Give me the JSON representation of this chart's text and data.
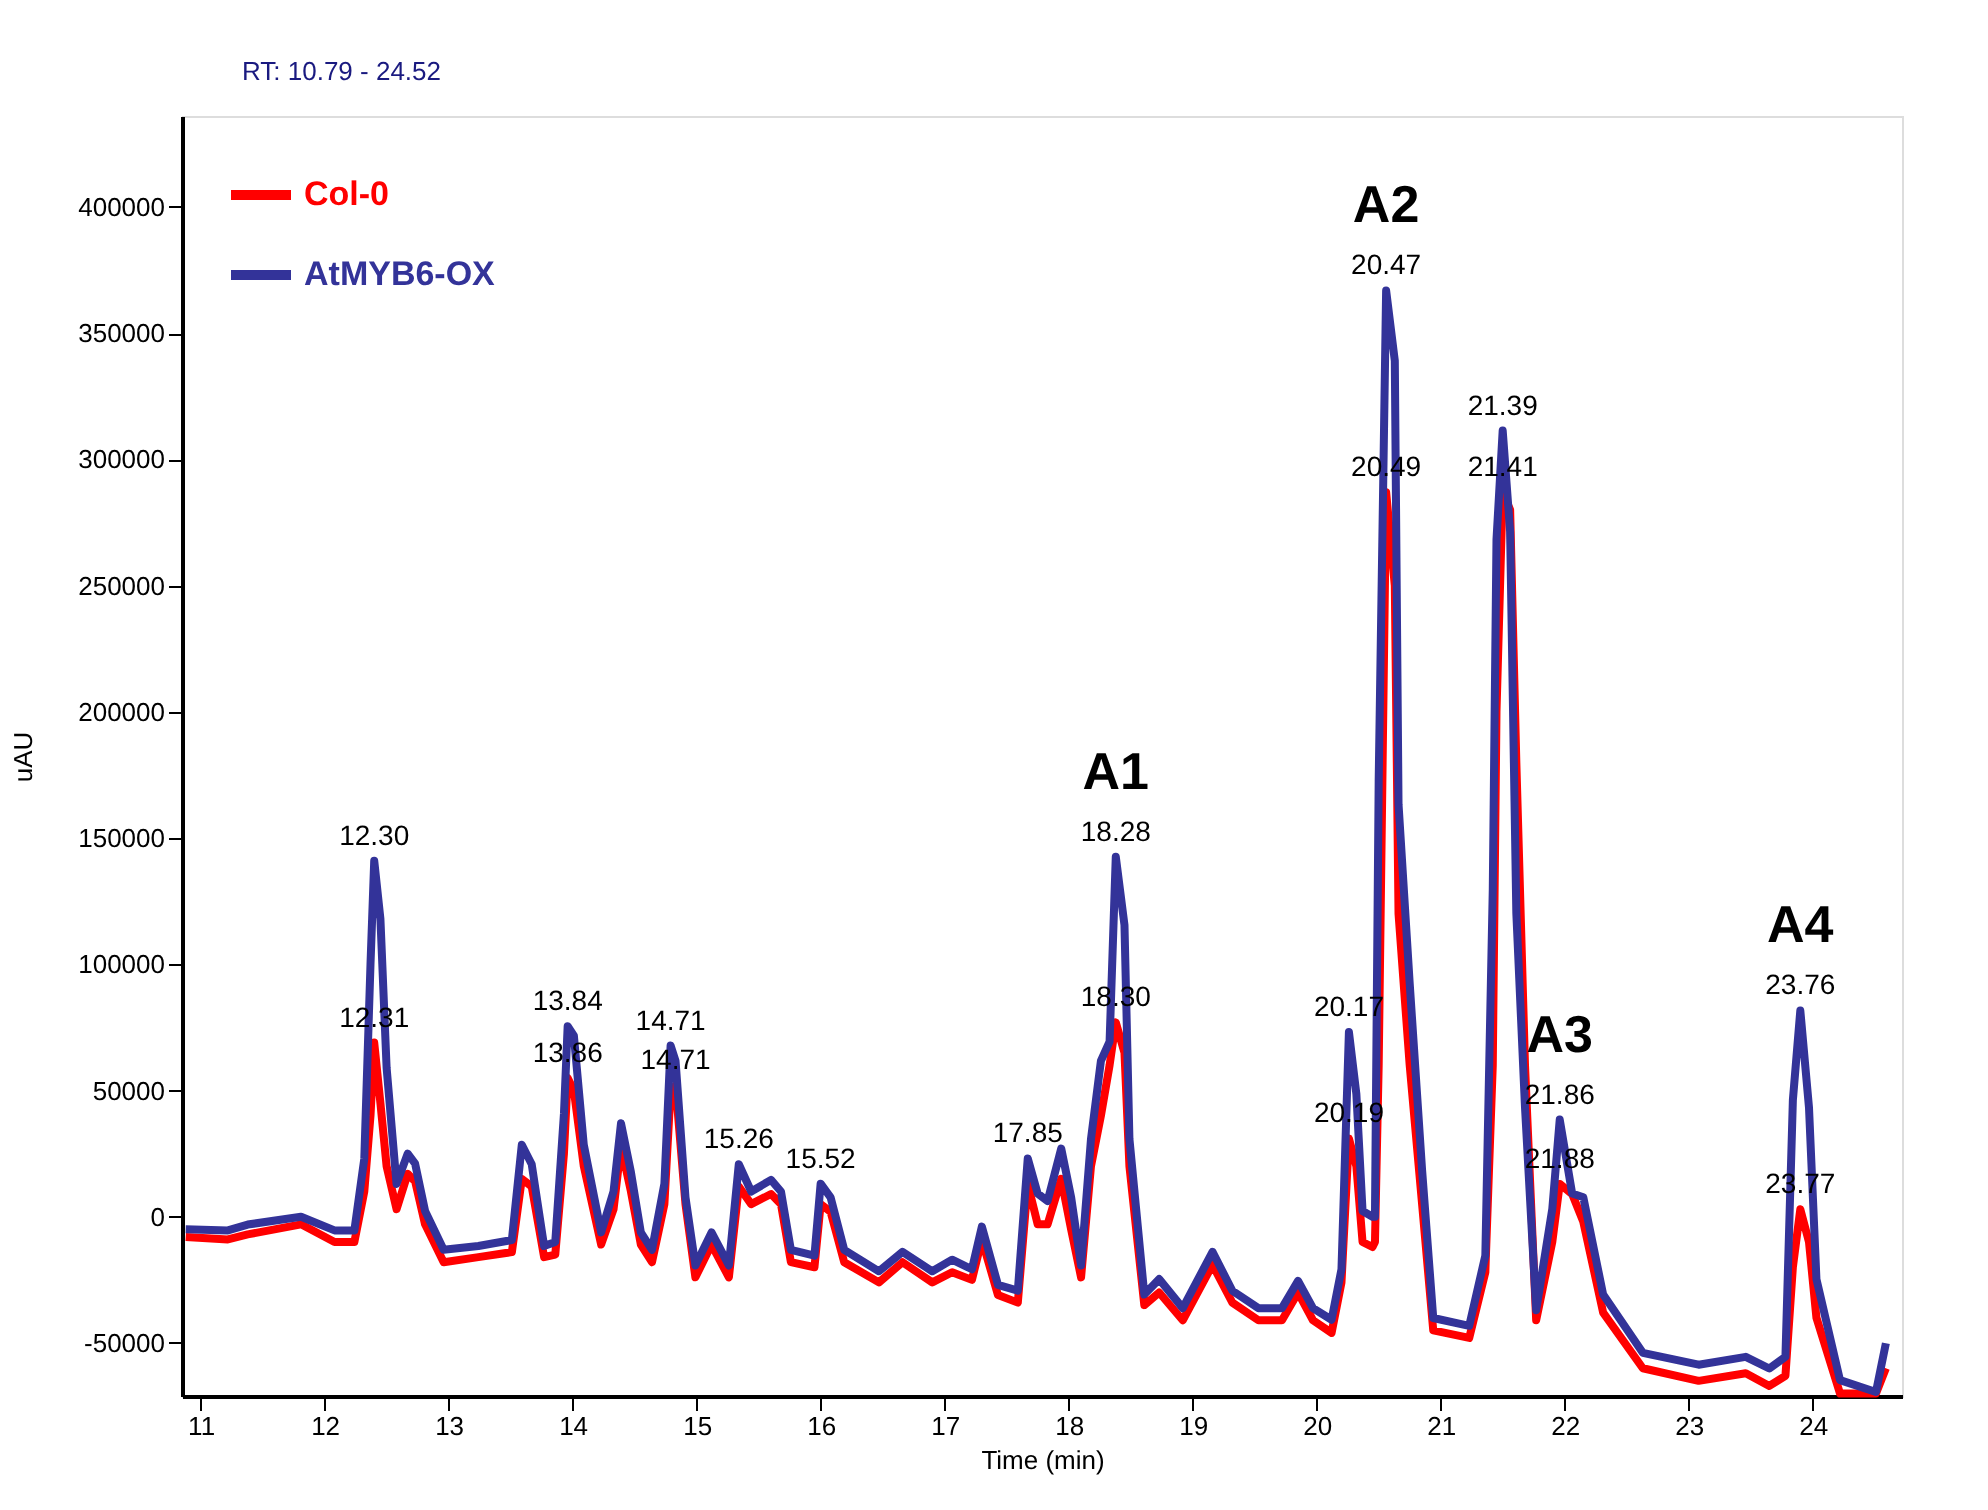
{
  "chart_data": {
    "type": "line",
    "xlabel": "Time (min)",
    "ylabel": "uAU",
    "x": [
      10.88,
      11.22,
      11.38,
      11.81,
      12.08,
      12.24,
      12.32,
      12.37,
      12.4,
      12.45,
      12.5,
      12.58,
      12.67,
      12.73,
      12.81,
      12.96,
      13.24,
      13.51,
      13.59,
      13.67,
      13.77,
      13.86,
      13.93,
      13.96,
      14.01,
      14.09,
      14.23,
      14.33,
      14.39,
      14.47,
      14.55,
      14.64,
      14.74,
      14.79,
      14.83,
      14.91,
      14.99,
      15.12,
      15.26,
      15.34,
      15.44,
      15.6,
      15.68,
      15.76,
      15.95,
      16.0,
      16.08,
      16.19,
      16.47,
      16.66,
      16.9,
      17.06,
      17.22,
      17.3,
      17.43,
      17.59,
      17.67,
      17.75,
      17.83,
      17.94,
      18.02,
      18.1,
      18.18,
      18.26,
      18.33,
      18.38,
      18.45,
      18.49,
      18.61,
      18.73,
      18.92,
      19.16,
      19.32,
      19.53,
      19.72,
      19.85,
      19.97,
      20.12,
      20.2,
      20.26,
      20.32,
      20.37,
      20.45,
      20.47,
      20.5,
      20.56,
      20.63,
      20.66,
      20.75,
      20.85,
      20.94,
      21.23,
      21.36,
      21.42,
      21.45,
      21.5,
      21.56,
      21.61,
      21.68,
      21.77,
      21.9,
      21.96,
      22.06,
      22.15,
      22.31,
      22.63,
      23.08,
      23.46,
      23.65,
      23.78,
      23.84,
      23.9,
      23.97,
      24.03,
      24.22,
      24.51,
      24.59
    ],
    "series": [
      {
        "name": "Col-0",
        "color": "#ff0000",
        "values": [
          -8000,
          -9000,
          -7000,
          -3000,
          -10000,
          -10000,
          10000,
          40000,
          69000,
          45000,
          20000,
          3000,
          17000,
          14000,
          -3000,
          -18000,
          -16000,
          -14000,
          15000,
          12000,
          -16000,
          -15000,
          25000,
          55000,
          50000,
          20000,
          -11000,
          3000,
          28000,
          10000,
          -11000,
          -18000,
          5000,
          50000,
          52000,
          5000,
          -24000,
          -11000,
          -24000,
          12000,
          5000,
          9000,
          5000,
          -18000,
          -20000,
          5000,
          2000,
          -18000,
          -26000,
          -18000,
          -26000,
          -22000,
          -25000,
          -9000,
          -31000,
          -34000,
          13000,
          -3000,
          -3000,
          15000,
          -5000,
          -24000,
          20000,
          40000,
          60000,
          77000,
          65000,
          20000,
          -35000,
          -30000,
          -41000,
          -19000,
          -34000,
          -41000,
          -41000,
          -30000,
          -41000,
          -46000,
          -26000,
          31000,
          20000,
          -10000,
          -12000,
          -10000,
          60000,
          287000,
          250000,
          120000,
          60000,
          5000,
          -45000,
          -48000,
          -22000,
          60000,
          200000,
          287000,
          280000,
          180000,
          60000,
          -41000,
          -10000,
          13000,
          9000,
          -2000,
          -38000,
          -60000,
          -65000,
          -62000,
          -67000,
          -63000,
          -20000,
          3000,
          -10000,
          -40000,
          -70000,
          -70000,
          -60000
        ]
      },
      {
        "name": "AtMYB6-OX",
        "color": "#333399",
        "values": [
          -5000,
          -5400,
          -3100,
          0,
          -5400,
          -5400,
          23000,
          100000,
          141000,
          118000,
          59000,
          13000,
          25000,
          21000,
          2300,
          -13100,
          -11600,
          -9200,
          28500,
          20800,
          -11600,
          -10000,
          40800,
          75500,
          71700,
          28500,
          -6200,
          10000,
          37000,
          17700,
          -6200,
          -13100,
          13100,
          67800,
          61700,
          7700,
          -19300,
          -6200,
          -19300,
          20800,
          10000,
          14600,
          10000,
          -13100,
          -15400,
          13100,
          7700,
          -13100,
          -21600,
          -13900,
          -21600,
          -17000,
          -20800,
          -3900,
          -27000,
          -29300,
          23100,
          9200,
          6200,
          27000,
          7700,
          -19300,
          30800,
          61700,
          69400,
          142600,
          115600,
          30800,
          -30800,
          -24700,
          -36200,
          -13900,
          -29300,
          -36200,
          -36200,
          -25400,
          -36200,
          -40800,
          -20800,
          73200,
          48600,
          2300,
          0,
          0,
          172600,
          366900,
          339100,
          163400,
          92500,
          18500,
          -40100,
          -43200,
          -15400,
          129500,
          268200,
          311400,
          271300,
          120200,
          43200,
          -37000,
          3100,
          38500,
          9200,
          7700,
          -30800,
          -53900,
          -58600,
          -55500,
          -60100,
          -55500,
          46200,
          81700,
          43200,
          -24700,
          -64700,
          -69400,
          -50100
        ]
      }
    ],
    "xlim": [
      10.85,
      24.72
    ],
    "xticks": [
      11,
      12,
      13,
      14,
      15,
      16,
      17,
      18,
      19,
      20,
      21,
      22,
      23,
      24
    ],
    "ylim": [
      -71000,
      436000
    ],
    "yticks": [
      -50000,
      0,
      50000,
      100000,
      150000,
      200000,
      250000,
      300000,
      350000,
      400000
    ],
    "grid": false,
    "legend": "top left",
    "marker": "none",
    "line_style": "solid",
    "annotations": [
      {
        "text": "A1",
        "x": 18.38,
        "y": 142600
      },
      {
        "text": "A2",
        "x": 20.56,
        "y": 366900
      },
      {
        "text": "A3",
        "x": 21.96,
        "y": 38500
      },
      {
        "text": "A4",
        "x": 23.9,
        "y": 81700
      },
      {
        "text": "12.30",
        "x": 12.4,
        "y": 141000
      },
      {
        "text": "12.31",
        "x": 12.4,
        "y": 69000
      },
      {
        "text": "13.84",
        "x": 13.96,
        "y": 75500
      },
      {
        "text": "13.86",
        "x": 13.96,
        "y": 55000
      },
      {
        "text": "14.71",
        "x": 14.79,
        "y": 67800
      },
      {
        "text": "14.71",
        "x": 14.83,
        "y": 52000
      },
      {
        "text": "15.26",
        "x": 15.34,
        "y": 20800
      },
      {
        "text": "15.52",
        "x": 16.0,
        "y": 13100
      },
      {
        "text": "17.85",
        "x": 17.67,
        "y": 23100
      },
      {
        "text": "18.28",
        "x": 18.38,
        "y": 142600
      },
      {
        "text": "18.30",
        "x": 18.38,
        "y": 77000
      },
      {
        "text": "20.17",
        "x": 20.26,
        "y": 73200
      },
      {
        "text": "20.19",
        "x": 20.26,
        "y": 31000
      },
      {
        "text": "20.47",
        "x": 20.56,
        "y": 366900
      },
      {
        "text": "20.49",
        "x": 20.56,
        "y": 287000
      },
      {
        "text": "21.39",
        "x": 21.5,
        "y": 311400
      },
      {
        "text": "21.41",
        "x": 21.5,
        "y": 287000
      },
      {
        "text": "21.86",
        "x": 21.96,
        "y": 38500
      },
      {
        "text": "21.88",
        "x": 21.96,
        "y": 13000
      },
      {
        "text": "23.76",
        "x": 23.9,
        "y": 81700
      },
      {
        "text": "23.77",
        "x": 23.9,
        "y": 3000
      },
      "RT: 10.79 - 24.52"
    ]
  }
}
